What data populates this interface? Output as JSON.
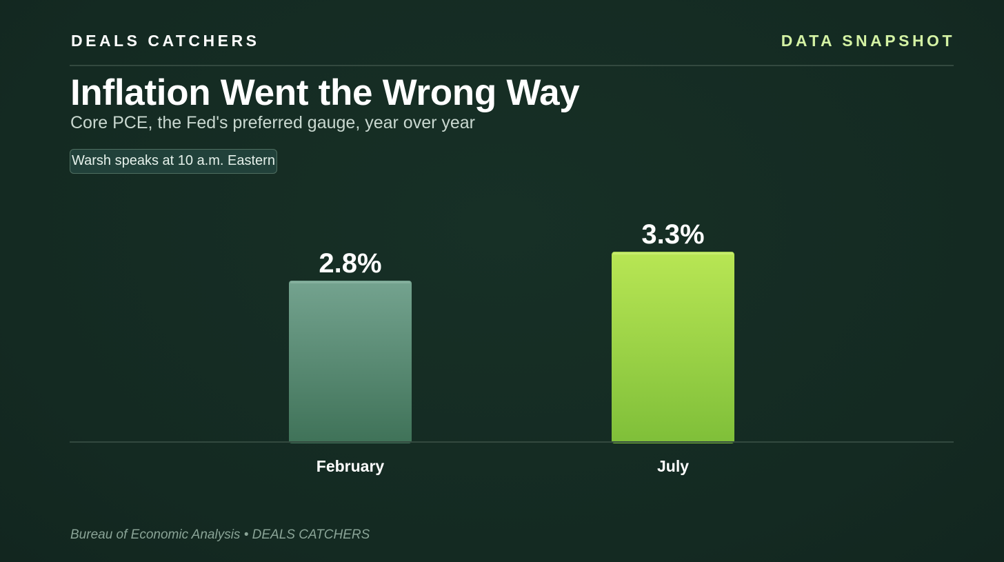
{
  "header": {
    "brand": "DEALS CATCHERS",
    "tag": "DATA SNAPSHOT"
  },
  "title": "Inflation Went the Wrong Way",
  "subtitle": "Core PCE, the Fed's preferred gauge, year over year",
  "badge": "Warsh speaks at 10 a.m. Eastern",
  "source": "Bureau of Economic Analysis • DEALS CATCHERS",
  "colors": {
    "background": "#142a22",
    "accent": "#d4f2a4",
    "bar_february": "#5b8f77",
    "bar_july": "#9fd84a"
  },
  "chart_data": {
    "type": "bar",
    "categories": [
      "February",
      "July"
    ],
    "values": [
      2.8,
      3.3
    ],
    "value_labels": [
      "2.8%",
      "3.3%"
    ],
    "unit": "%",
    "ylim": [
      0,
      3.9
    ],
    "grid": false,
    "legend": "none"
  }
}
